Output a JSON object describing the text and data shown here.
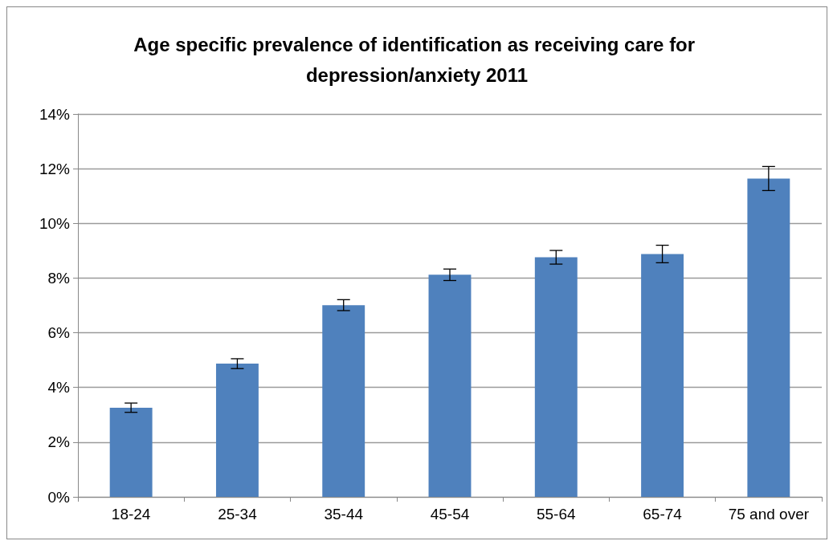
{
  "chart_data": {
    "type": "bar",
    "title": "Age specific prevalence of identification as receiving care for depression/anxiety 2011",
    "categories": [
      "18-24",
      "25-34",
      "35-44",
      "45-54",
      "55-64",
      "65-74",
      "75 and over"
    ],
    "values": [
      3.26,
      4.87,
      7.01,
      8.12,
      8.76,
      8.88,
      11.64
    ],
    "errors": [
      0.17,
      0.18,
      0.2,
      0.21,
      0.25,
      0.32,
      0.44
    ],
    "color": "#4f81bd",
    "ylim": [
      0,
      14
    ],
    "yticks": [
      {
        "value": 0,
        "label": "0%"
      },
      {
        "value": 2,
        "label": "2%"
      },
      {
        "value": 4,
        "label": "4%"
      },
      {
        "value": 6,
        "label": "6%"
      },
      {
        "value": 8,
        "label": "8%"
      },
      {
        "value": 10,
        "label": "10%"
      },
      {
        "value": 12,
        "label": "12%"
      },
      {
        "value": 14,
        "label": "14%"
      }
    ],
    "grid": "y"
  }
}
